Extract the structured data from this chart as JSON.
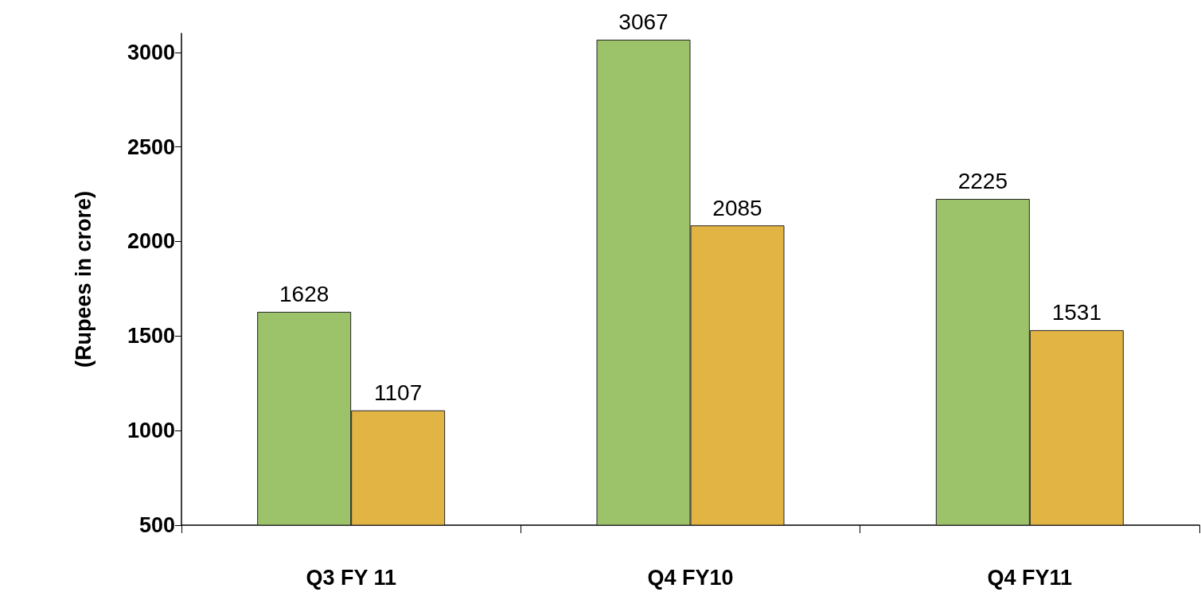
{
  "chart_data": {
    "type": "bar",
    "ylabel": "(Rupees in crore)",
    "categories": [
      "Q3 FY 11",
      "Q4 FY10",
      "Q4 FY11"
    ],
    "series": [
      {
        "color": "#9cc36a",
        "values": [
          1628,
          3067,
          2225
        ]
      },
      {
        "color": "#e2b443",
        "values": [
          1107,
          2085,
          1531
        ]
      }
    ],
    "ylim": [
      500,
      3100
    ],
    "yticks": [
      500,
      1000,
      1500,
      2000,
      2500,
      3000
    ],
    "data_labels": true,
    "grid": false
  }
}
